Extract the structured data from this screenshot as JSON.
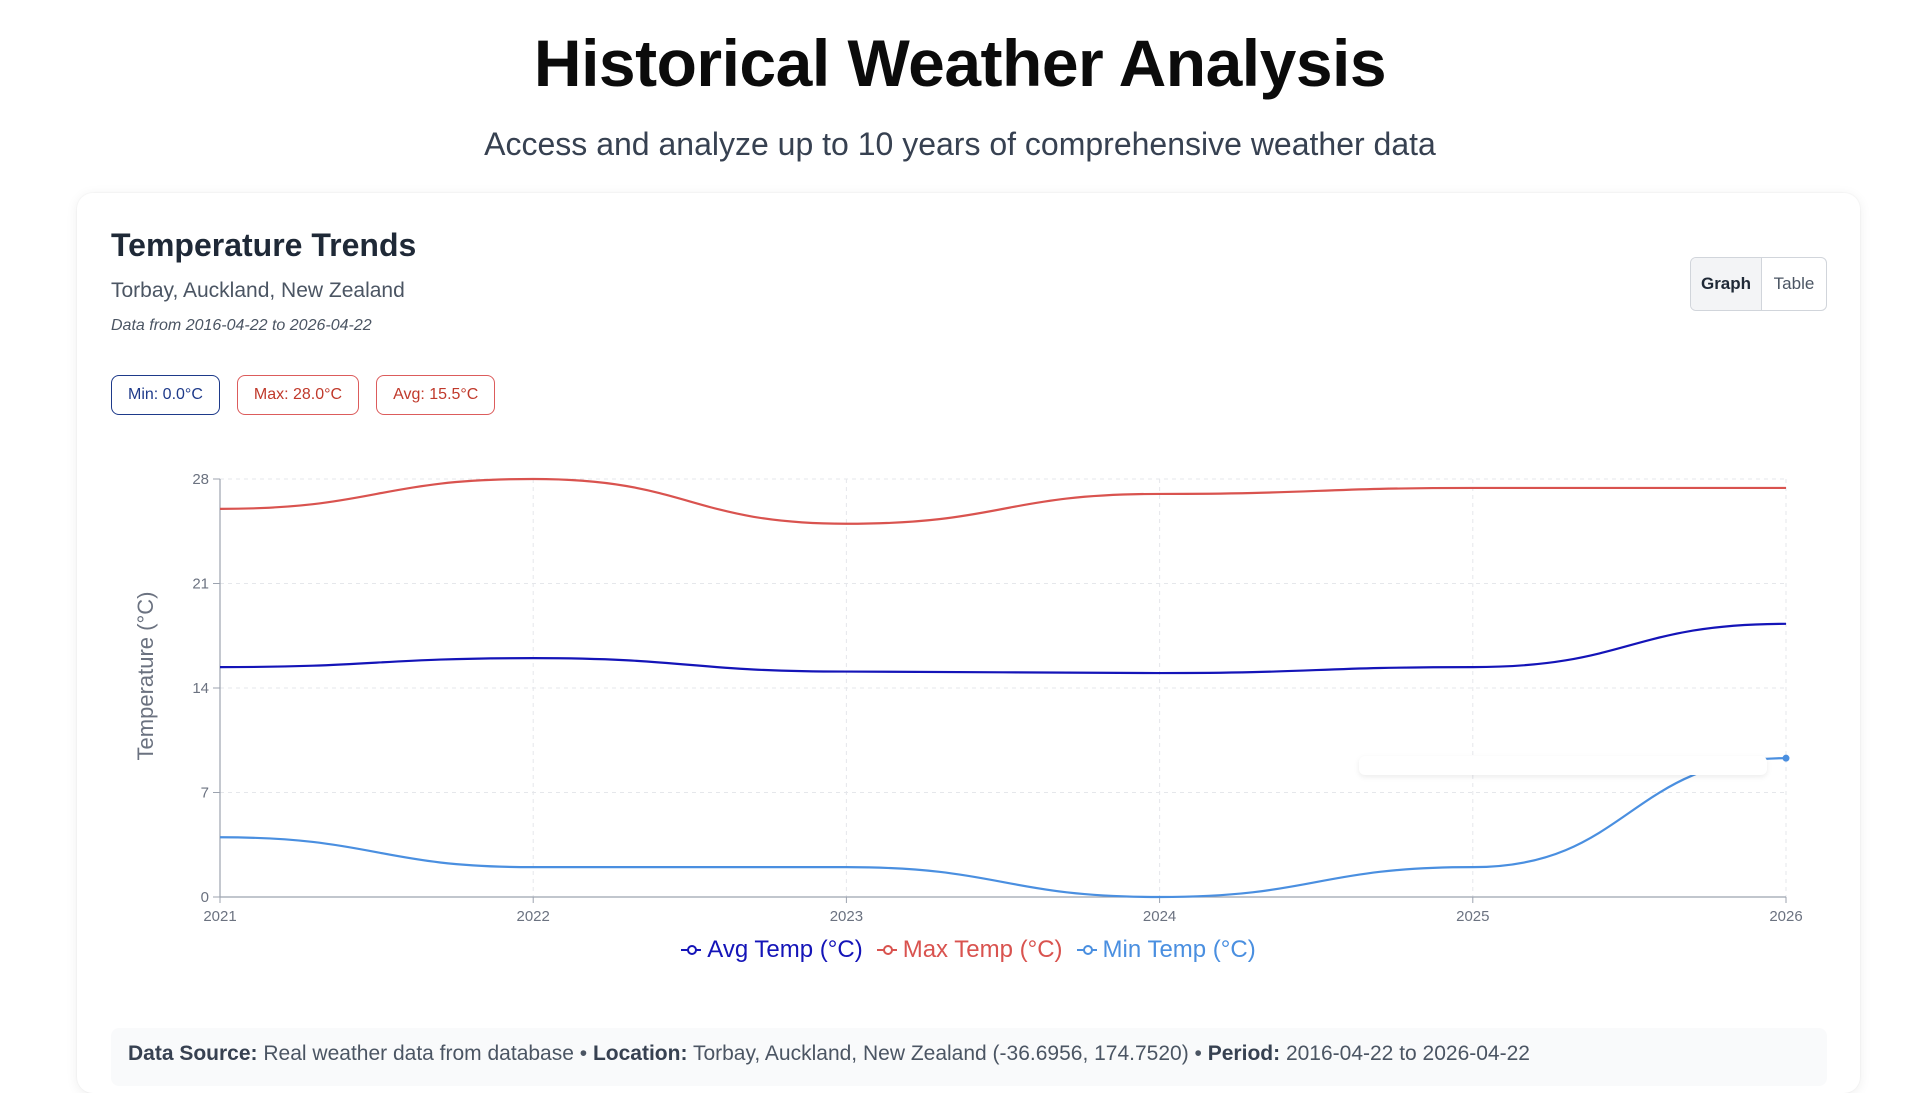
{
  "header": {
    "title": "Historical Weather Analysis",
    "subtitle": "Access and analyze up to 10 years of comprehensive weather data"
  },
  "card": {
    "title": "Temperature Trends",
    "location": "Torbay, Auckland, New Zealand",
    "date_range": "Data from 2016-04-22 to 2026-04-22",
    "view_toggle": {
      "graph_label": "Graph",
      "table_label": "Table",
      "active": "Graph"
    },
    "stats": {
      "min_label": "Min: 0.0°C",
      "max_label": "Max: 28.0°C",
      "avg_label": "Avg: 15.5°C"
    }
  },
  "footer": {
    "source_label": "Data Source:",
    "source_value": "Real weather data from database",
    "location_label": "Location:",
    "location_value": "Torbay, Auckland, New Zealand (-36.6956, 174.7520)",
    "period_label": "Period:",
    "period_value": "2016-04-22 to 2026-04-22",
    "separator": "•"
  },
  "colors": {
    "avg": "#1414b8",
    "max": "#d9534f",
    "min": "#4a8fe0",
    "grid": "#e5e7eb",
    "axis": "#9ca3af"
  },
  "chart_data": {
    "type": "line",
    "x": [
      2021,
      2022,
      2023,
      2024,
      2025,
      2026
    ],
    "xticks": [
      "2021",
      "2022",
      "2023",
      "2024",
      "2025",
      "2026"
    ],
    "ylabel": "Temperature (°C)",
    "ylim": [
      0,
      28
    ],
    "yticks": [
      0,
      7,
      14,
      21,
      28
    ],
    "grid": true,
    "legend_position": "bottom",
    "series": [
      {
        "name": "Avg Temp (°C)",
        "color_key": "avg",
        "values": [
          15.4,
          16.0,
          15.1,
          15.0,
          15.4,
          18.3
        ]
      },
      {
        "name": "Max Temp (°C)",
        "color_key": "max",
        "values": [
          26.0,
          28.0,
          25.0,
          27.0,
          27.4,
          27.4
        ]
      },
      {
        "name": "Min Temp (°C)",
        "color_key": "min",
        "values": [
          4.0,
          2.0,
          2.0,
          0.0,
          2.0,
          9.3
        ]
      }
    ]
  }
}
